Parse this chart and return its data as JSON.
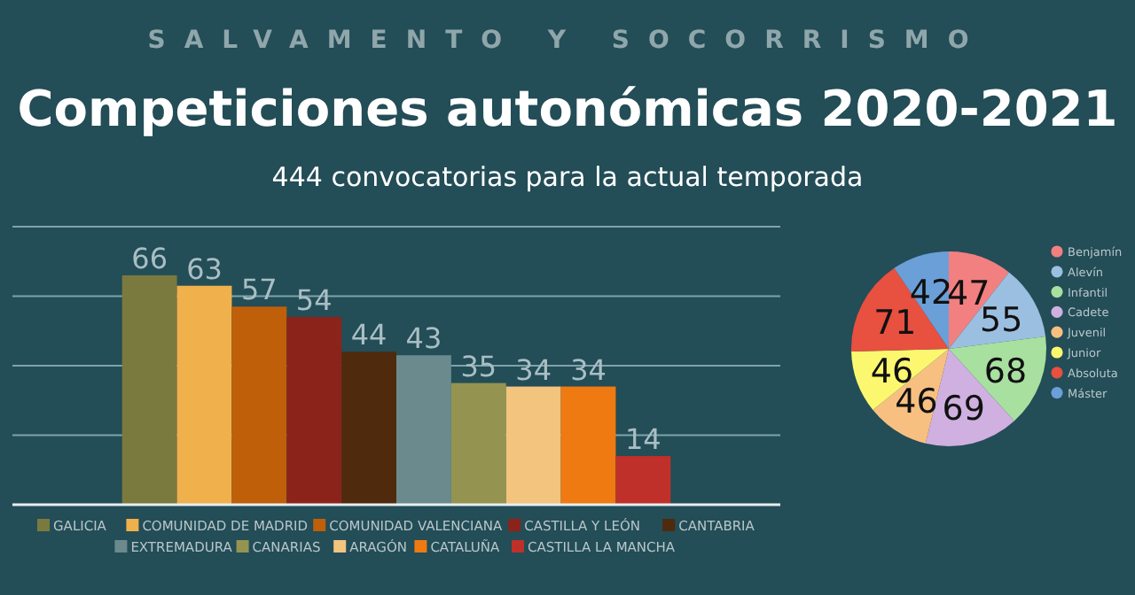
{
  "chart_data": [
    {
      "type": "bar",
      "title": "Competiciones autonómicas 2020-2021",
      "subtitle": "444 convocatorias para la actual temporada",
      "annotations": [
        "SALVAMENTO Y SOCORRISMO"
      ],
      "categories": [
        null
      ],
      "series": [
        {
          "name": "GALICIA",
          "color": "#7a7a3e",
          "values": [
            66
          ]
        },
        {
          "name": "COMUNIDAD DE MADRID",
          "color": "#f0b04c",
          "values": [
            63
          ]
        },
        {
          "name": "COMUNIDAD VALENCIANA",
          "color": "#bf5f0a",
          "values": [
            57
          ]
        },
        {
          "name": "CASTILLA Y LEÓN",
          "color": "#8c231b",
          "values": [
            54
          ]
        },
        {
          "name": "CANTABRIA",
          "color": "#4f2a0c",
          "values": [
            44
          ]
        },
        {
          "name": "EXTREMADURA",
          "color": "#6b8a8e",
          "values": [
            43
          ]
        },
        {
          "name": "CANARIAS",
          "color": "#949450",
          "values": [
            35
          ]
        },
        {
          "name": "ARAGÓN",
          "color": "#f2c47e",
          "values": [
            34
          ]
        },
        {
          "name": "CATALUÑA",
          "color": "#ee7a11",
          "values": [
            34
          ]
        },
        {
          "name": "CASTILLA LA MANCHA",
          "color": "#c0302a",
          "values": [
            14
          ]
        }
      ],
      "ylim": [
        0,
        80
      ],
      "yticks": [
        {
          "value": 0,
          "label": null
        },
        {
          "value": 20,
          "label": null
        },
        {
          "value": 40,
          "label": null
        },
        {
          "value": 60,
          "label": null
        },
        {
          "value": 80,
          "label": null
        }
      ],
      "grid": "y",
      "tick_labels": false,
      "data_labels": true,
      "legend": "bottom"
    },
    {
      "type": "pie",
      "categories": [
        "Benjamín",
        "Alevín",
        "Infantil",
        "Cadete",
        "Juvenil",
        "Junior",
        "Absoluta",
        "Máster"
      ],
      "values": [
        47,
        55,
        68,
        69,
        46,
        46,
        71,
        42
      ],
      "colors": [
        "#f28080",
        "#9bbfe0",
        "#a8e0a0",
        "#cfb0e0",
        "#f8c080",
        "#fbf870",
        "#e8503f",
        "#6a9fd8"
      ],
      "data_labels": true,
      "legend": "right"
    }
  ]
}
